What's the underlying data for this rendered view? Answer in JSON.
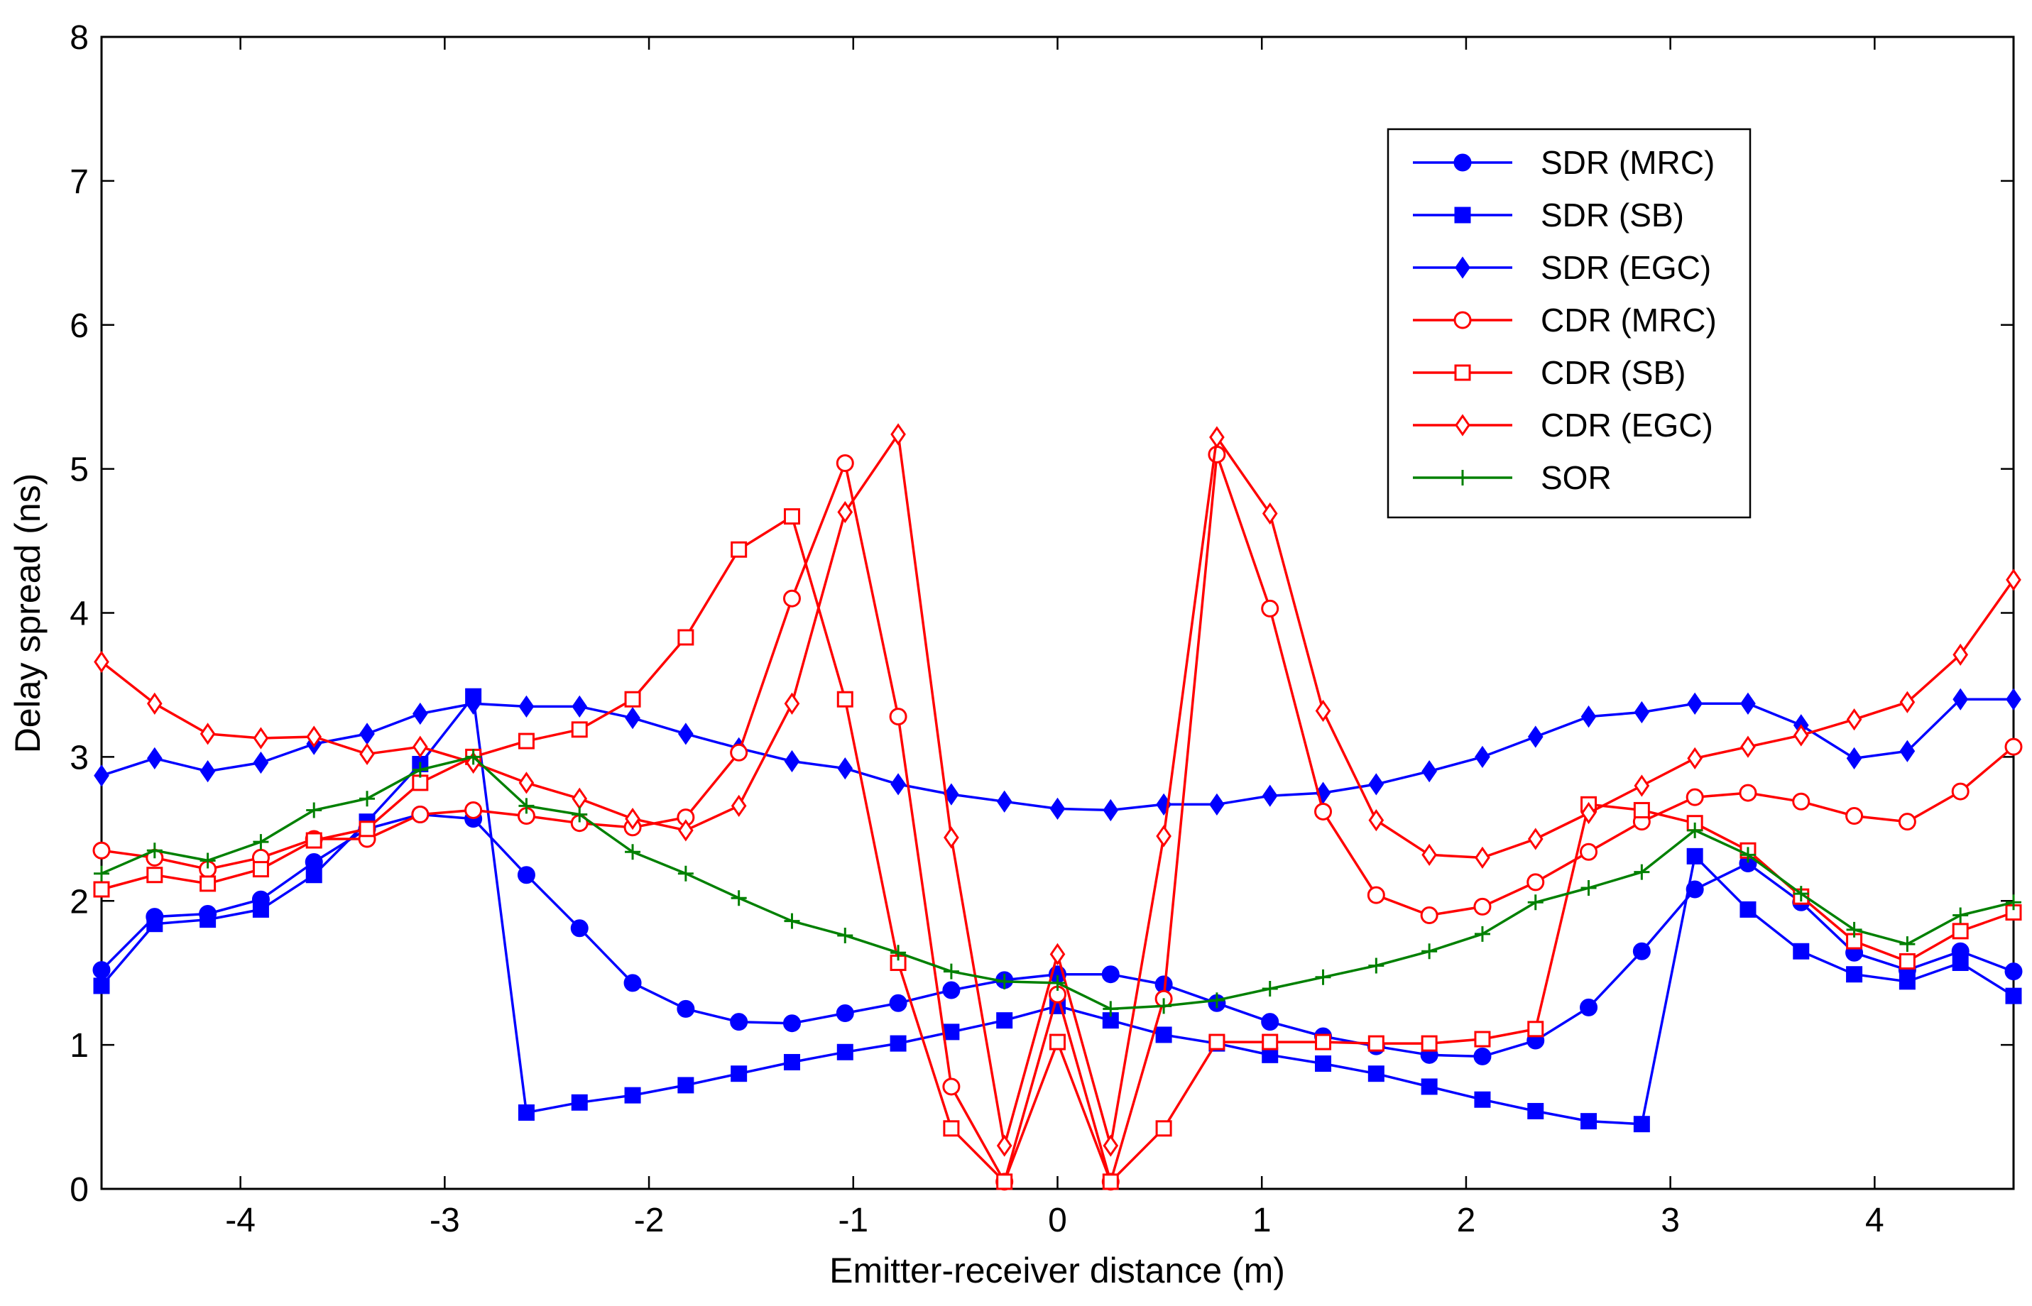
{
  "chart_data": {
    "type": "line",
    "title": "",
    "xlabel": "Emitter-receiver distance (m)",
    "ylabel": "Delay spread (ns)",
    "xlim": [
      -4.68,
      4.68
    ],
    "ylim": [
      0,
      8
    ],
    "xticks": [
      -4,
      -3,
      -2,
      -1,
      0,
      1,
      2,
      3,
      4
    ],
    "yticks": [
      0,
      1,
      2,
      3,
      4,
      5,
      6,
      7,
      8
    ],
    "grid": false,
    "legend_position": "top-right",
    "x": [
      -4.68,
      -4.42,
      -4.16,
      -3.9,
      -3.64,
      -3.38,
      -3.12,
      -2.86,
      -2.6,
      -2.34,
      -2.08,
      -1.82,
      -1.56,
      -1.3,
      -1.04,
      -0.78,
      -0.52,
      -0.26,
      0,
      0.26,
      0.52,
      0.78,
      1.04,
      1.3,
      1.56,
      1.82,
      2.08,
      2.34,
      2.6,
      2.86,
      3.12,
      3.38,
      3.64,
      3.9,
      4.16,
      4.42,
      4.68
    ],
    "series": [
      {
        "name": "SDR (MRC)",
        "color": "#0000ff",
        "marker": "circle",
        "filled": true,
        "values": [
          1.52,
          1.89,
          1.91,
          2.01,
          2.27,
          2.5,
          2.6,
          2.57,
          2.18,
          1.81,
          1.43,
          1.25,
          1.16,
          1.15,
          1.22,
          1.29,
          1.38,
          1.45,
          1.49,
          1.49,
          1.42,
          1.29,
          1.16,
          1.06,
          0.99,
          0.93,
          0.92,
          1.03,
          1.26,
          1.65,
          2.08,
          2.26,
          1.99,
          1.64,
          1.52,
          1.65,
          1.51
        ]
      },
      {
        "name": "SDR (SB)",
        "color": "#0000ff",
        "marker": "square",
        "filled": true,
        "values": [
          1.41,
          1.84,
          1.87,
          1.94,
          2.18,
          2.55,
          2.95,
          3.42,
          0.53,
          0.6,
          0.65,
          0.72,
          0.8,
          0.88,
          0.95,
          1.01,
          1.09,
          1.17,
          1.27,
          1.17,
          1.07,
          1.01,
          0.93,
          0.87,
          0.8,
          0.71,
          0.62,
          0.54,
          0.47,
          0.45,
          2.31,
          1.94,
          1.65,
          1.49,
          1.44,
          1.57,
          1.34
        ]
      },
      {
        "name": "SDR (EGC)",
        "color": "#0000ff",
        "marker": "diamond",
        "filled": true,
        "values": [
          2.87,
          2.99,
          2.9,
          2.96,
          3.09,
          3.16,
          3.3,
          3.37,
          3.35,
          3.35,
          3.27,
          3.16,
          3.06,
          2.97,
          2.92,
          2.81,
          2.74,
          2.69,
          2.64,
          2.63,
          2.67,
          2.67,
          2.73,
          2.75,
          2.81,
          2.9,
          3.0,
          3.14,
          3.28,
          3.31,
          3.37,
          3.37,
          3.22,
          2.99,
          3.04,
          3.4,
          3.4
        ]
      },
      {
        "name": "CDR (MRC)",
        "color": "#ff0000",
        "marker": "circle",
        "filled": false,
        "values": [
          2.35,
          2.3,
          2.22,
          2.3,
          2.43,
          2.43,
          2.6,
          2.63,
          2.59,
          2.54,
          2.51,
          2.58,
          3.03,
          4.1,
          5.04,
          3.28,
          0.71,
          0.05,
          1.35,
          0.05,
          1.32,
          5.1,
          4.03,
          2.62,
          2.04,
          1.9,
          1.96,
          2.13,
          2.34,
          2.55,
          2.72,
          2.75,
          2.69,
          2.59,
          2.55,
          2.76,
          3.07
        ]
      },
      {
        "name": "CDR (SB)",
        "color": "#ff0000",
        "marker": "square",
        "filled": false,
        "values": [
          2.08,
          2.18,
          2.12,
          2.22,
          2.42,
          2.5,
          2.82,
          3.0,
          3.11,
          3.19,
          3.4,
          3.83,
          4.44,
          4.67,
          3.4,
          1.57,
          0.42,
          0.05,
          1.02,
          0.05,
          0.42,
          1.02,
          1.02,
          1.02,
          1.01,
          1.01,
          1.04,
          1.11,
          2.67,
          2.63,
          2.54,
          2.35,
          2.03,
          1.72,
          1.58,
          1.79,
          1.92
        ]
      },
      {
        "name": "CDR (EGC)",
        "color": "#ff0000",
        "marker": "diamond",
        "filled": false,
        "values": [
          3.66,
          3.37,
          3.16,
          3.13,
          3.14,
          3.02,
          3.07,
          2.96,
          2.82,
          2.71,
          2.57,
          2.49,
          2.66,
          3.37,
          4.7,
          5.24,
          2.44,
          0.3,
          1.63,
          0.3,
          2.45,
          5.22,
          4.69,
          3.32,
          2.56,
          2.32,
          2.3,
          2.43,
          2.61,
          2.8,
          2.99,
          3.07,
          3.15,
          3.26,
          3.38,
          3.71,
          4.23
        ]
      },
      {
        "name": "SOR",
        "color": "#008000",
        "marker": "plus",
        "filled": false,
        "values": [
          2.19,
          2.35,
          2.28,
          2.41,
          2.63,
          2.71,
          2.91,
          3.0,
          2.66,
          2.6,
          2.34,
          2.19,
          2.02,
          1.86,
          1.76,
          1.64,
          1.51,
          1.44,
          1.43,
          1.25,
          1.27,
          1.31,
          1.39,
          1.47,
          1.55,
          1.65,
          1.77,
          1.99,
          2.09,
          2.2,
          2.49,
          2.32,
          2.05,
          1.8,
          1.7,
          1.9,
          1.99
        ]
      }
    ]
  }
}
